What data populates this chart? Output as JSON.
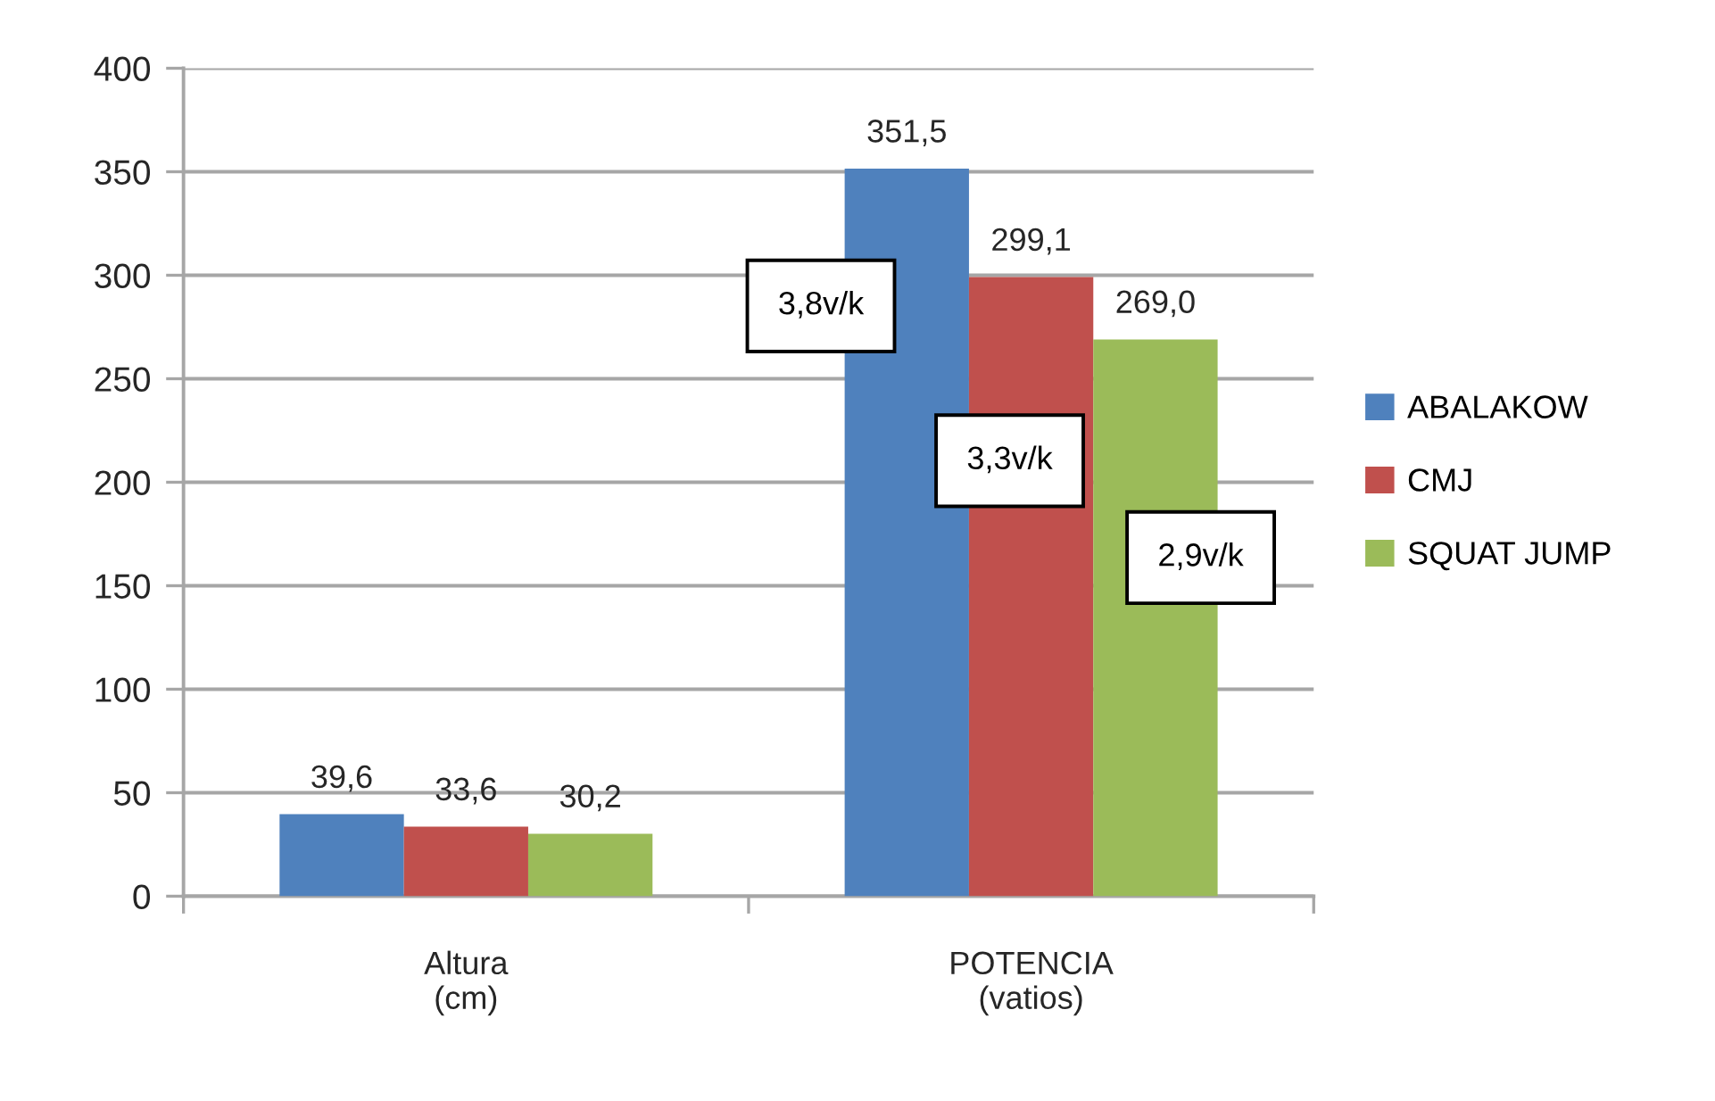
{
  "chart_data": {
    "type": "bar",
    "categories": [
      "Altura\n(cm)",
      "POTENCIA\n(vatios)"
    ],
    "series": [
      {
        "name": "ABALAKOW",
        "color": "#4f81bd",
        "values": [
          39.6,
          351.5
        ],
        "value_labels": [
          "39,6",
          "351,5"
        ]
      },
      {
        "name": "CMJ",
        "color": "#c0504d",
        "values": [
          33.6,
          299.1
        ],
        "value_labels": [
          "33,6",
          "299,1"
        ]
      },
      {
        "name": "SQUAT JUMP",
        "color": "#9bbb59",
        "values": [
          30.2,
          269.0
        ],
        "value_labels": [
          "30,2",
          "269,0"
        ]
      }
    ],
    "ylim": [
      0,
      400
    ],
    "yticks": [
      0,
      50,
      100,
      150,
      200,
      250,
      300,
      350,
      400
    ],
    "grid": "y",
    "legend": "right",
    "annotations": [
      "3,8v/k",
      "3,3v/k",
      "2,9v/k"
    ]
  }
}
